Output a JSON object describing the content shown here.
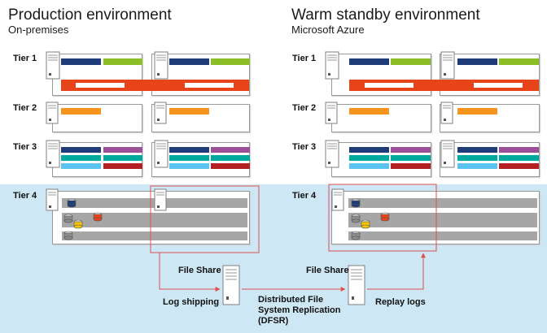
{
  "production": {
    "title": "Production environment",
    "subtitle": "On-premises"
  },
  "standby": {
    "title": "Warm standby environment",
    "subtitle": "Microsoft Azure"
  },
  "tiers": [
    "Tier 1",
    "Tier 2",
    "Tier 3",
    "Tier 4"
  ],
  "file_share_label": "File Share",
  "log_shipping_label": "Log shipping",
  "dfsr_label": [
    "Distributed File",
    "System Replication",
    "(DFSR)"
  ],
  "replay_label": "Replay logs",
  "colors": {
    "navy": "#1f3c78",
    "green": "#8cbf26",
    "red_orange": "#e8441a",
    "orange": "#f7941e",
    "purple": "#9b4f96",
    "teal": "#00a99d",
    "light_blue": "#5cc2f0",
    "dark_red": "#b52025",
    "tier4_bg": "#cde7f5",
    "db_gray": "#a6a6a6",
    "highlight_red": "#e04f4f"
  }
}
